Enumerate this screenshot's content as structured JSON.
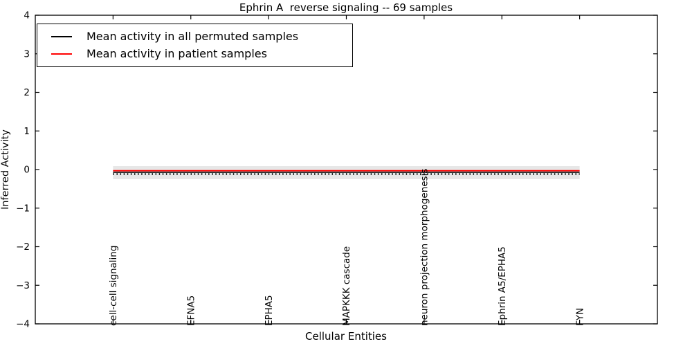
{
  "figure": {
    "background": "#ffffff"
  },
  "chart_data": {
    "type": "line",
    "title": "Ephrin A  reverse signaling -- 69 samples",
    "xlabel": "Cellular Entities",
    "ylabel": "Inferred Activity",
    "categories": [
      "cell-cell signaling",
      "EFNA5",
      "EPHA5",
      "MAPKKK cascade",
      "neuron projection morphogenesis",
      "Ephrin A5/EPHA5",
      "FYN"
    ],
    "ylim": [
      -4,
      4
    ],
    "xlim": [
      -1,
      7
    ],
    "yticks": {
      "values": [
        4,
        3,
        2,
        1,
        0,
        -1,
        -2,
        -3,
        -4
      ],
      "labels": [
        "4",
        "3",
        "2",
        "1",
        "0",
        "−1",
        "−2",
        "−3",
        "−4"
      ]
    },
    "grid": false,
    "series": [
      {
        "name": "Mean activity in all permuted samples",
        "color": "#000000",
        "style": "solid-with-sample-ticks",
        "values": [
          -0.07,
          -0.07,
          -0.07,
          -0.07,
          -0.07,
          -0.07,
          -0.07
        ]
      },
      {
        "name": "Mean activity in patient samples",
        "color": "#ff0000",
        "style": "solid",
        "values": [
          -0.03,
          -0.03,
          -0.03,
          -0.03,
          -0.03,
          -0.03,
          -0.03
        ]
      }
    ],
    "band": {
      "upper": 0.09,
      "lower": -0.25,
      "color": "#e7e7e7"
    },
    "legend": {
      "position": "upper left",
      "entries": [
        {
          "label": "Mean activity in all permuted samples",
          "color": "#000000"
        },
        {
          "label": "Mean activity in patient samples",
          "color": "#ff0000"
        }
      ]
    }
  }
}
